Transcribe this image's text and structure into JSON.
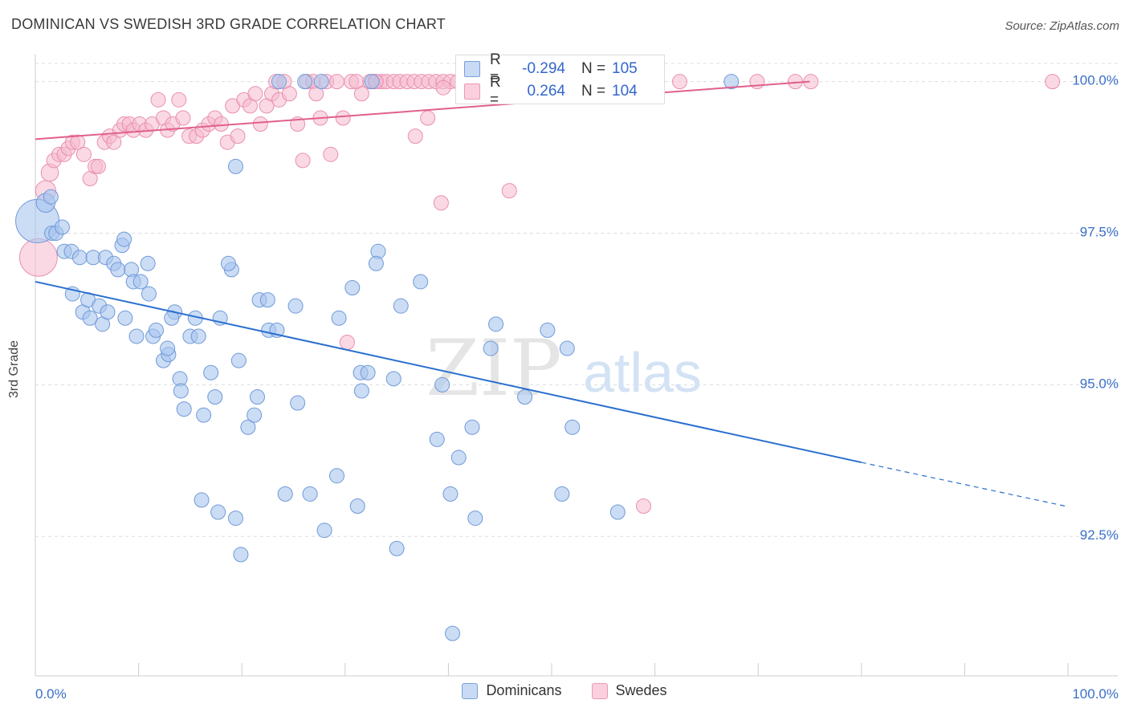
{
  "header": {
    "title": "DOMINICAN VS SWEDISH 3RD GRADE CORRELATION CHART",
    "source": "Source: ZipAtlas.com"
  },
  "stats": {
    "dominicans": {
      "r_label": "R =",
      "r_value": "-0.294",
      "n_label": "N =",
      "n_value": "105"
    },
    "swedes": {
      "r_label": "R =",
      "r_value": "0.264",
      "n_label": "N =",
      "n_value": "104"
    }
  },
  "legend": {
    "dominicans": "Dominicans",
    "swedes": "Swedes"
  },
  "colors": {
    "dominicans_fill": "#a8c4ee",
    "dominicans_stroke": "#6f9ad8",
    "dominicans_line": "#2a6fcf",
    "swedes_fill": "#f6b9cd",
    "swedes_stroke": "#e98fb0",
    "swedes_line": "#e0608d",
    "tick_label": "#3a6fc8",
    "grid": "#dddddd"
  },
  "chart_data": {
    "type": "scatter",
    "title": "DOMINICAN VS SWEDISH 3RD GRADE CORRELATION CHART",
    "xlabel": "",
    "ylabel": "3rd Grade",
    "xlim": [
      0,
      100
    ],
    "ylim": [
      90.2,
      100.3
    ],
    "x_tick_labels": [
      "0.0%",
      "100.0%"
    ],
    "y_ticks": [
      92.5,
      95.0,
      97.5,
      100.0
    ],
    "y_tick_labels": [
      "92.5%",
      "95.0%",
      "97.5%",
      "100.0%"
    ],
    "grid": "horizontal dashed",
    "legend_position": "bottom",
    "watermark": {
      "zip": "ZIP",
      "atlas": "atlas"
    },
    "series": [
      {
        "name": "Dominicans",
        "trend": {
          "x0": 0,
          "y0": 96.7,
          "x1": 80,
          "y1": 93.72,
          "dashed_to": 100,
          "dashed_y": 92.99
        },
        "points": [
          [
            0.2,
            97.7,
            3
          ],
          [
            1.0,
            98.0,
            1.3
          ],
          [
            1.5,
            98.1,
            1
          ],
          [
            1.6,
            97.5,
            1
          ],
          [
            2.0,
            97.5,
            1
          ],
          [
            2.6,
            97.6,
            1
          ],
          [
            2.8,
            97.2,
            1
          ],
          [
            3.5,
            97.2,
            1
          ],
          [
            4.3,
            97.1,
            1
          ],
          [
            5.6,
            97.1,
            1
          ],
          [
            3.6,
            96.5,
            1
          ],
          [
            4.6,
            96.2,
            1
          ],
          [
            5.1,
            96.4,
            1
          ],
          [
            5.3,
            96.1,
            1
          ],
          [
            6.2,
            96.3,
            1
          ],
          [
            6.5,
            96.0,
            1
          ],
          [
            7.0,
            96.2,
            1
          ],
          [
            6.8,
            97.1,
            1
          ],
          [
            7.6,
            97.0,
            1
          ],
          [
            8.0,
            96.9,
            1
          ],
          [
            8.4,
            97.3,
            1
          ],
          [
            8.6,
            97.4,
            1
          ],
          [
            8.7,
            96.1,
            1
          ],
          [
            9.3,
            96.9,
            1
          ],
          [
            9.5,
            96.7,
            1
          ],
          [
            10.2,
            96.7,
            1
          ],
          [
            11.0,
            96.5,
            1
          ],
          [
            10.9,
            97.0,
            1
          ],
          [
            9.8,
            95.8,
            1
          ],
          [
            11.4,
            95.8,
            1
          ],
          [
            11.7,
            95.9,
            1
          ],
          [
            12.4,
            95.4,
            1
          ],
          [
            12.9,
            95.5,
            1
          ],
          [
            12.8,
            95.6,
            1
          ],
          [
            13.5,
            96.2,
            1
          ],
          [
            13.2,
            96.1,
            1
          ],
          [
            14.0,
            95.1,
            1
          ],
          [
            14.1,
            94.9,
            1
          ],
          [
            14.4,
            94.6,
            1
          ],
          [
            15.0,
            95.8,
            1
          ],
          [
            15.5,
            96.1,
            1
          ],
          [
            15.8,
            95.8,
            1
          ],
          [
            16.3,
            94.5,
            1
          ],
          [
            17.0,
            95.2,
            1
          ],
          [
            17.4,
            94.8,
            1
          ],
          [
            17.9,
            96.1,
            1
          ],
          [
            16.1,
            93.1,
            1
          ],
          [
            17.7,
            92.9,
            1
          ],
          [
            19.4,
            92.8,
            1
          ],
          [
            19.0,
            96.9,
            1
          ],
          [
            18.7,
            97.0,
            1
          ],
          [
            19.4,
            98.6,
            1
          ],
          [
            19.7,
            95.4,
            1
          ],
          [
            19.9,
            92.2,
            1
          ],
          [
            20.6,
            94.3,
            1
          ],
          [
            21.2,
            94.5,
            1
          ],
          [
            21.5,
            94.8,
            1
          ],
          [
            21.7,
            96.4,
            1
          ],
          [
            22.5,
            96.4,
            1
          ],
          [
            22.6,
            95.9,
            1
          ],
          [
            23.4,
            95.9,
            1
          ],
          [
            23.6,
            100.0,
            1
          ],
          [
            24.2,
            93.2,
            1
          ],
          [
            25.2,
            96.3,
            1
          ],
          [
            25.4,
            94.7,
            1
          ],
          [
            26.1,
            100.0,
            1
          ],
          [
            26.6,
            93.2,
            1
          ],
          [
            27.7,
            100.0,
            1
          ],
          [
            28.0,
            92.6,
            1
          ],
          [
            29.2,
            93.5,
            1
          ],
          [
            29.4,
            96.1,
            1
          ],
          [
            30.7,
            96.6,
            1
          ],
          [
            31.2,
            93.0,
            1
          ],
          [
            31.5,
            95.2,
            1
          ],
          [
            31.6,
            94.9,
            1
          ],
          [
            32.2,
            95.2,
            1
          ],
          [
            32.6,
            100.0,
            1
          ],
          [
            33.2,
            97.2,
            1
          ],
          [
            33.0,
            97.0,
            1
          ],
          [
            34.7,
            95.1,
            1
          ],
          [
            35.0,
            92.3,
            1
          ],
          [
            35.4,
            96.3,
            1
          ],
          [
            37.3,
            96.7,
            1
          ],
          [
            38.9,
            94.1,
            1
          ],
          [
            39.4,
            95.0,
            1
          ],
          [
            40.2,
            93.2,
            1
          ],
          [
            40.4,
            90.9,
            1
          ],
          [
            41.0,
            93.8,
            1
          ],
          [
            42.3,
            94.3,
            1
          ],
          [
            42.6,
            92.8,
            1
          ],
          [
            44.1,
            95.6,
            1
          ],
          [
            44.6,
            96.0,
            1
          ],
          [
            47.4,
            94.8,
            1
          ],
          [
            49.6,
            95.9,
            1
          ],
          [
            51.0,
            93.2,
            1
          ],
          [
            51.5,
            95.6,
            1
          ],
          [
            52.0,
            94.3,
            1
          ],
          [
            56.4,
            92.9,
            1
          ],
          [
            67.4,
            100.0,
            1
          ]
        ]
      },
      {
        "name": "Swedes",
        "trend": {
          "x0": 0,
          "y0": 99.05,
          "x1": 75,
          "y1": 100.0
        },
        "points": [
          [
            0.3,
            97.1,
            2.6
          ],
          [
            1.0,
            98.2,
            1.4
          ],
          [
            1.4,
            98.5,
            1.2
          ],
          [
            1.8,
            98.7,
            1
          ],
          [
            2.3,
            98.8,
            1
          ],
          [
            2.8,
            98.8,
            1
          ],
          [
            3.2,
            98.9,
            1
          ],
          [
            3.6,
            99.0,
            1
          ],
          [
            4.1,
            99.0,
            1
          ],
          [
            4.7,
            98.8,
            1
          ],
          [
            5.3,
            98.4,
            1
          ],
          [
            5.8,
            98.6,
            1
          ],
          [
            6.1,
            98.6,
            1
          ],
          [
            6.7,
            99.0,
            1
          ],
          [
            7.2,
            99.1,
            1
          ],
          [
            7.6,
            99.0,
            1
          ],
          [
            8.2,
            99.2,
            1
          ],
          [
            8.6,
            99.3,
            1
          ],
          [
            9.1,
            99.3,
            1
          ],
          [
            9.5,
            99.2,
            1
          ],
          [
            10.1,
            99.3,
            1
          ],
          [
            10.7,
            99.2,
            1
          ],
          [
            11.3,
            99.3,
            1
          ],
          [
            11.9,
            99.7,
            1
          ],
          [
            12.4,
            99.4,
            1
          ],
          [
            12.8,
            99.2,
            1
          ],
          [
            13.3,
            99.3,
            1
          ],
          [
            13.9,
            99.7,
            1
          ],
          [
            14.3,
            99.4,
            1
          ],
          [
            14.9,
            99.1,
            1
          ],
          [
            15.6,
            99.1,
            1
          ],
          [
            16.2,
            99.2,
            1
          ],
          [
            16.8,
            99.3,
            1
          ],
          [
            17.4,
            99.4,
            1
          ],
          [
            18.0,
            99.3,
            1
          ],
          [
            18.6,
            99.0,
            1
          ],
          [
            19.1,
            99.6,
            1
          ],
          [
            19.6,
            99.1,
            1
          ],
          [
            20.2,
            99.7,
            1
          ],
          [
            20.8,
            99.6,
            1
          ],
          [
            21.3,
            99.8,
            1
          ],
          [
            21.8,
            99.3,
            1
          ],
          [
            22.4,
            99.6,
            1
          ],
          [
            22.9,
            99.8,
            1
          ],
          [
            23.3,
            100.0,
            1
          ],
          [
            23.6,
            99.7,
            1
          ],
          [
            24.1,
            100.0,
            1
          ],
          [
            24.6,
            99.8,
            1
          ],
          [
            25.4,
            99.3,
            1
          ],
          [
            25.9,
            98.7,
            1
          ],
          [
            26.3,
            100.0,
            1
          ],
          [
            26.9,
            100.0,
            1
          ],
          [
            27.2,
            99.8,
            1
          ],
          [
            27.6,
            99.4,
            1
          ],
          [
            28.2,
            100.0,
            1
          ],
          [
            28.6,
            98.8,
            1
          ],
          [
            29.2,
            100.0,
            1
          ],
          [
            29.8,
            99.4,
            1
          ],
          [
            30.6,
            100.0,
            1
          ],
          [
            31.1,
            100.0,
            1
          ],
          [
            31.6,
            99.8,
            1
          ],
          [
            32.4,
            100.0,
            1
          ],
          [
            32.9,
            100.0,
            1
          ],
          [
            33.5,
            100.0,
            1
          ],
          [
            34.0,
            100.0,
            1
          ],
          [
            34.7,
            100.0,
            1
          ],
          [
            35.3,
            100.0,
            1
          ],
          [
            36.0,
            100.0,
            1
          ],
          [
            36.7,
            100.0,
            1
          ],
          [
            37.4,
            100.0,
            1
          ],
          [
            38.1,
            100.0,
            1
          ],
          [
            38.8,
            100.0,
            1
          ],
          [
            39.5,
            100.0,
            1
          ],
          [
            40.2,
            100.0,
            1
          ],
          [
            40.9,
            100.0,
            1
          ],
          [
            41.6,
            100.0,
            1
          ],
          [
            42.3,
            100.0,
            1
          ],
          [
            43.0,
            100.0,
            1
          ],
          [
            43.7,
            100.0,
            1
          ],
          [
            44.4,
            100.0,
            1
          ],
          [
            45.1,
            100.0,
            1
          ],
          [
            46.0,
            100.0,
            1
          ],
          [
            46.8,
            100.0,
            1
          ],
          [
            47.8,
            100.0,
            1
          ],
          [
            48.7,
            100.0,
            1
          ],
          [
            49.6,
            100.0,
            1
          ],
          [
            50.5,
            100.0,
            1
          ],
          [
            51.6,
            100.0,
            1
          ],
          [
            52.8,
            100.0,
            1
          ],
          [
            55.2,
            100.0,
            1
          ],
          [
            58.2,
            100.0,
            1
          ],
          [
            62.4,
            100.0,
            1
          ],
          [
            69.9,
            100.0,
            1
          ],
          [
            73.6,
            100.0,
            1
          ],
          [
            75.1,
            100.0,
            1
          ],
          [
            98.5,
            100.0,
            1
          ],
          [
            39.5,
            99.9,
            1
          ],
          [
            38.0,
            99.4,
            1
          ],
          [
            36.8,
            99.1,
            1
          ],
          [
            33.0,
            100.0,
            1
          ],
          [
            30.2,
            95.7,
            1
          ],
          [
            39.3,
            98.0,
            1
          ],
          [
            45.9,
            98.2,
            1
          ],
          [
            58.9,
            93.0,
            1
          ]
        ]
      }
    ]
  }
}
